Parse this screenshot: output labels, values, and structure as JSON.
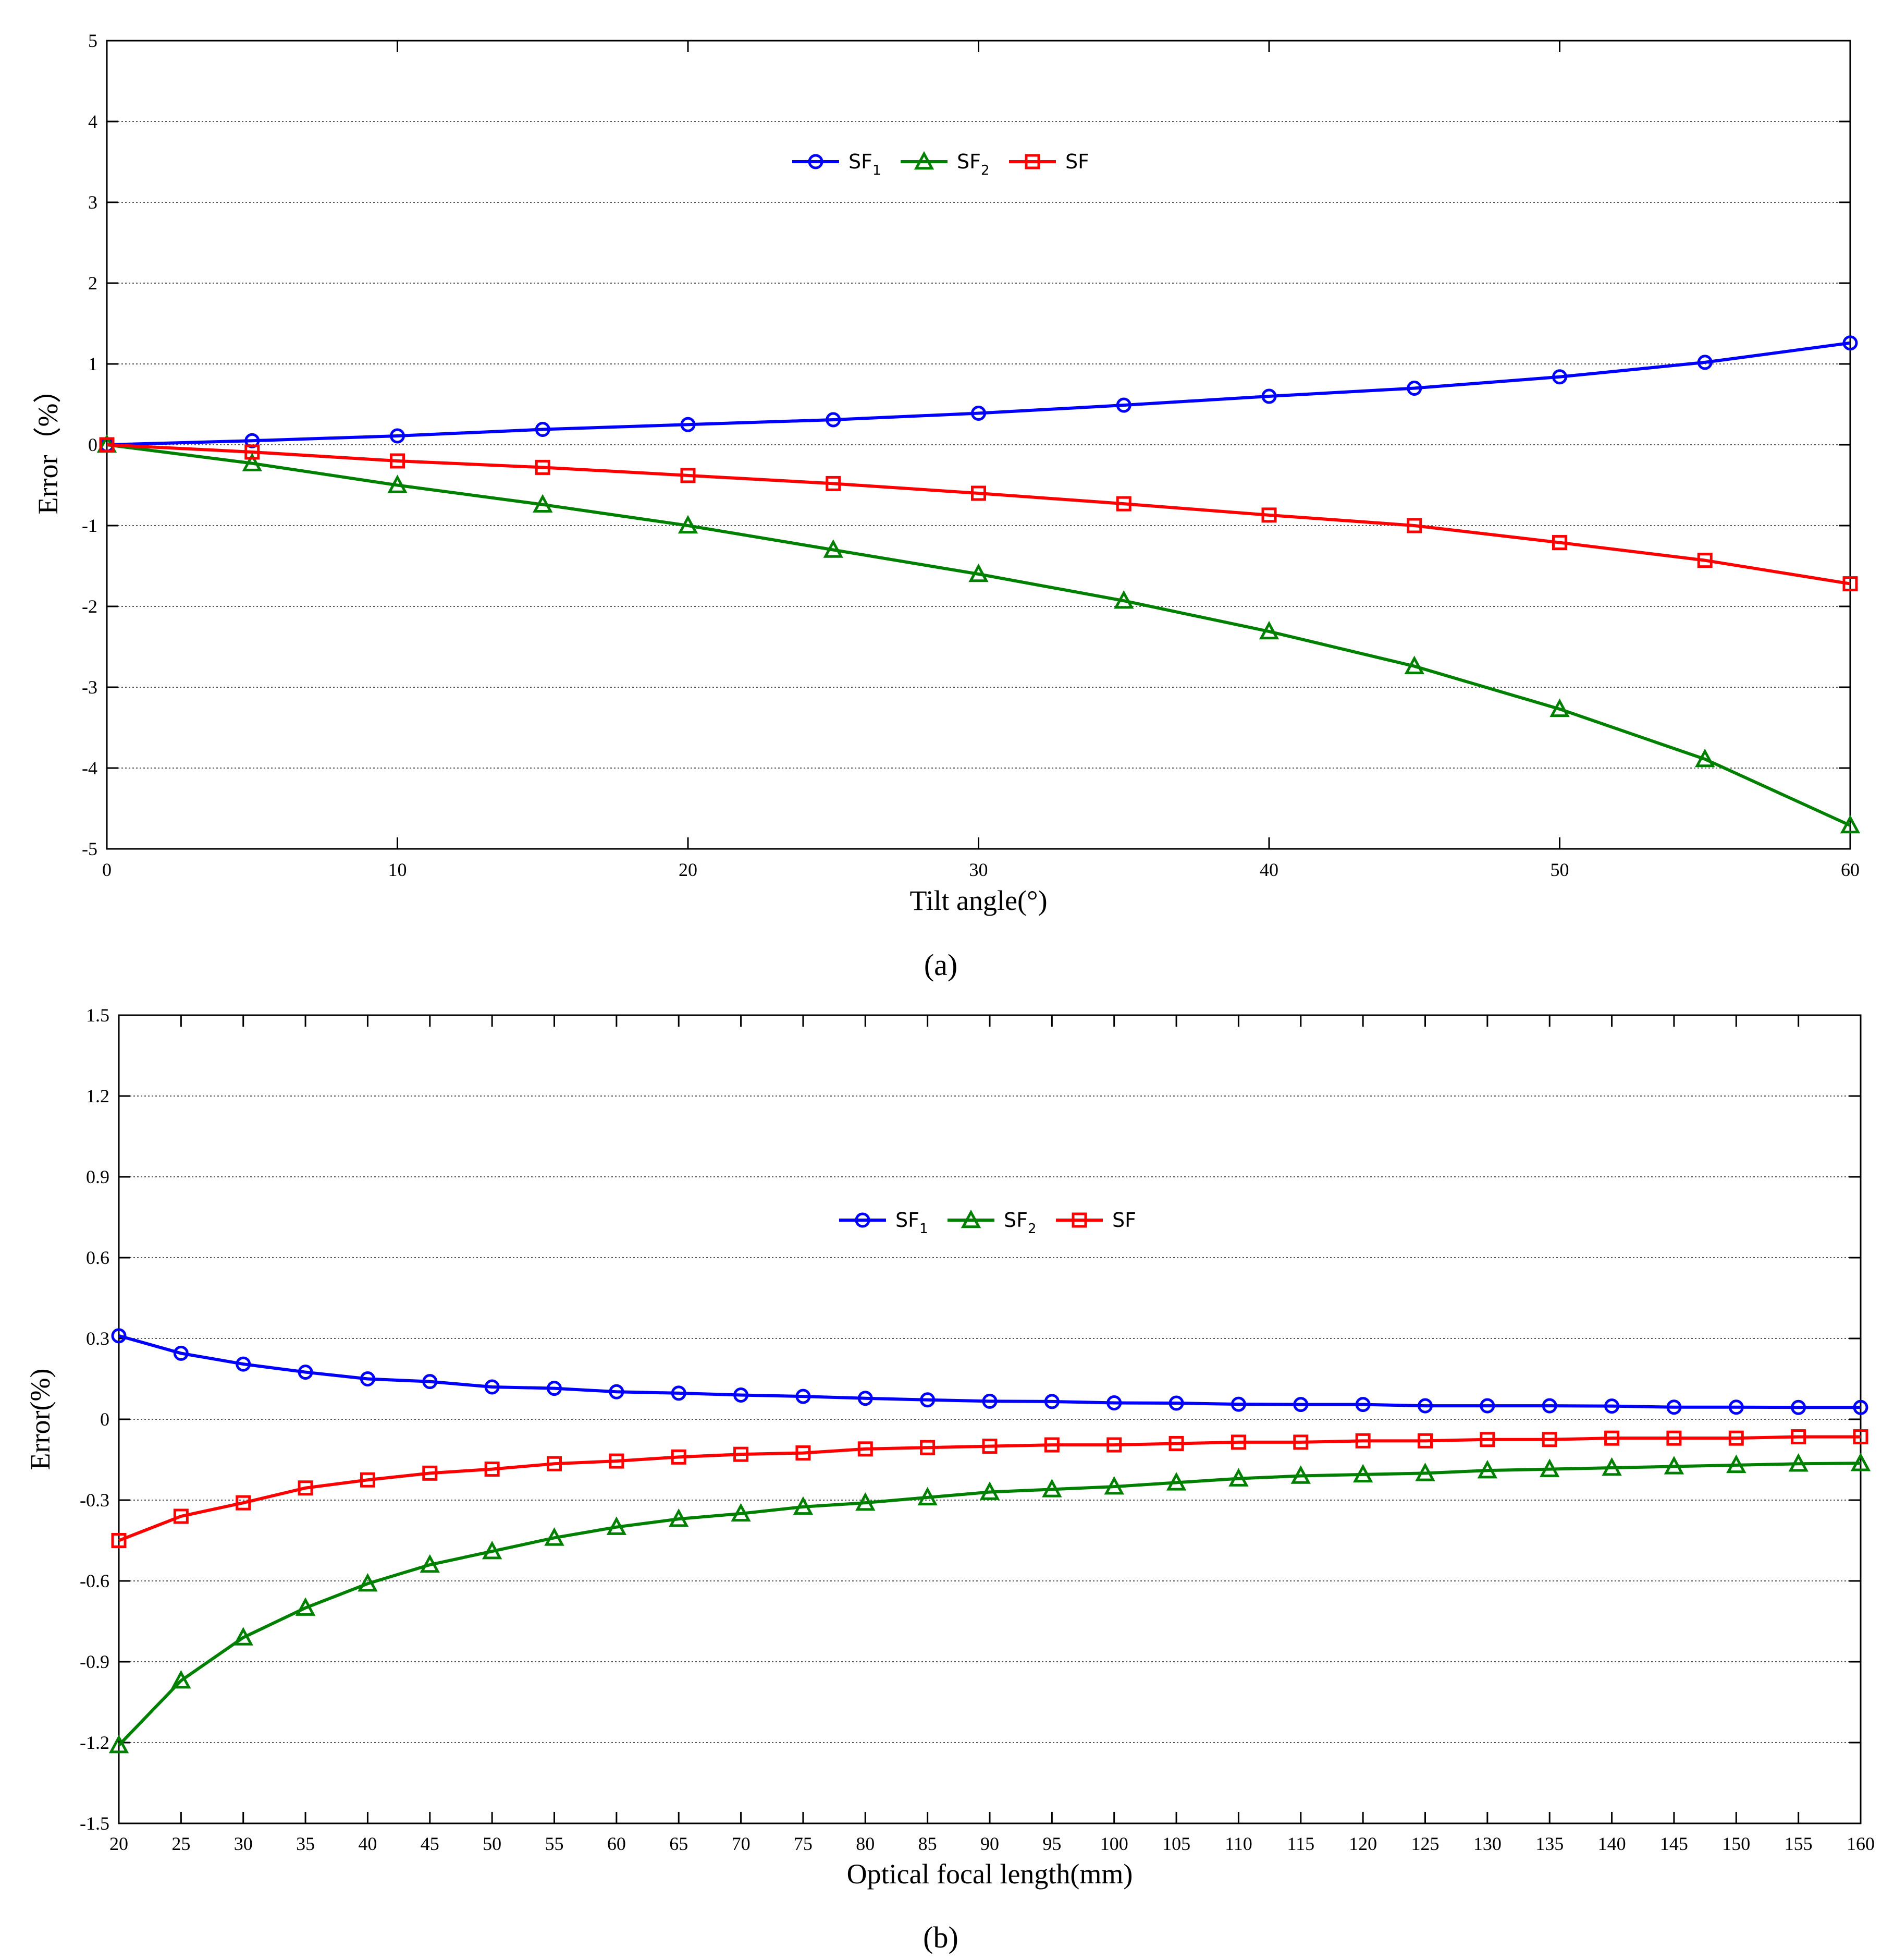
{
  "chart_data": [
    {
      "type": "line",
      "panel_label": "(a)",
      "xlabel": "Tilt angle(°)",
      "ylabel": "Error（%）",
      "xlim": [
        0,
        60
      ],
      "ylim": [
        -5,
        5
      ],
      "x_ticks": [
        0,
        10,
        20,
        30,
        40,
        50,
        60
      ],
      "y_ticks": [
        5,
        4,
        3,
        2,
        1,
        0,
        -1,
        -2,
        -3,
        -4,
        -5
      ],
      "grid": "horizontal dotted",
      "legend_position": "top-center",
      "x": [
        0,
        5,
        10,
        15,
        20,
        25,
        30,
        35,
        40,
        45,
        50,
        55,
        60
      ],
      "series": [
        {
          "name": "SF",
          "sub": "1",
          "color": "#0000ff",
          "marker": "circle",
          "values": [
            0,
            0.05,
            0.11,
            0.19,
            0.25,
            0.31,
            0.39,
            0.49,
            0.6,
            0.7,
            0.84,
            1.02,
            1.26
          ]
        },
        {
          "name": "SF",
          "sub": "2",
          "color": "#008000",
          "marker": "triangle",
          "values": [
            0,
            -0.23,
            -0.5,
            -0.74,
            -1.0,
            -1.3,
            -1.6,
            -1.93,
            -2.31,
            -2.74,
            -3.27,
            -3.89,
            -4.71
          ]
        },
        {
          "name": "SF",
          "sub": "",
          "color": "#ff0000",
          "marker": "square",
          "values": [
            0,
            -0.09,
            -0.2,
            -0.28,
            -0.38,
            -0.48,
            -0.6,
            -0.73,
            -0.87,
            -1.0,
            -1.21,
            -1.43,
            -1.72
          ]
        }
      ]
    },
    {
      "type": "line",
      "panel_label": "(b)",
      "xlabel": "Optical focal length(mm)",
      "ylabel": "Error(%)",
      "xlim": [
        20,
        160
      ],
      "ylim": [
        -1.5,
        1.5
      ],
      "x_ticks": [
        20,
        25,
        30,
        35,
        40,
        45,
        50,
        55,
        60,
        65,
        70,
        75,
        80,
        85,
        90,
        95,
        100,
        105,
        110,
        115,
        120,
        125,
        130,
        135,
        140,
        145,
        150,
        155,
        160
      ],
      "y_ticks": [
        1.5,
        1.2,
        0.9,
        0.6,
        0.3,
        0,
        -0.3,
        -0.6,
        -0.9,
        -1.2,
        -1.5
      ],
      "y_tick_labels": [
        "1.5",
        "1.2",
        "0.9",
        "0.6",
        "0.3",
        "0",
        "-0.3",
        "-0.6",
        "-0.9",
        "-1.2",
        "-1.5"
      ],
      "grid": "horizontal dotted",
      "legend_position": "top-center",
      "x": [
        20,
        25,
        30,
        35,
        40,
        45,
        50,
        55,
        60,
        65,
        70,
        75,
        80,
        85,
        90,
        95,
        100,
        105,
        110,
        115,
        120,
        125,
        130,
        135,
        140,
        145,
        150,
        155,
        160
      ],
      "series": [
        {
          "name": "SF",
          "sub": "1",
          "color": "#0000ff",
          "marker": "circle",
          "values": [
            0.31,
            0.245,
            0.205,
            0.175,
            0.15,
            0.14,
            0.12,
            0.115,
            0.102,
            0.097,
            0.09,
            0.085,
            0.078,
            0.072,
            0.067,
            0.066,
            0.061,
            0.06,
            0.056,
            0.055,
            0.055,
            0.05,
            0.05,
            0.05,
            0.049,
            0.045,
            0.045,
            0.044,
            0.044
          ]
        },
        {
          "name": "SF",
          "sub": "2",
          "color": "#008000",
          "marker": "triangle",
          "values": [
            -1.21,
            -0.97,
            -0.81,
            -0.7,
            -0.61,
            -0.54,
            -0.49,
            -0.44,
            -0.4,
            -0.37,
            -0.35,
            -0.325,
            -0.31,
            -0.29,
            -0.27,
            -0.26,
            -0.25,
            -0.235,
            -0.22,
            -0.21,
            -0.205,
            -0.2,
            -0.19,
            -0.185,
            -0.18,
            -0.175,
            -0.17,
            -0.165,
            -0.163
          ]
        },
        {
          "name": "SF",
          "sub": "",
          "color": "#ff0000",
          "marker": "square",
          "values": [
            -0.45,
            -0.36,
            -0.31,
            -0.255,
            -0.225,
            -0.2,
            -0.185,
            -0.165,
            -0.155,
            -0.14,
            -0.13,
            -0.125,
            -0.11,
            -0.105,
            -0.1,
            -0.095,
            -0.095,
            -0.09,
            -0.085,
            -0.085,
            -0.08,
            -0.08,
            -0.075,
            -0.075,
            -0.07,
            -0.07,
            -0.07,
            -0.065,
            -0.065
          ]
        }
      ]
    }
  ]
}
